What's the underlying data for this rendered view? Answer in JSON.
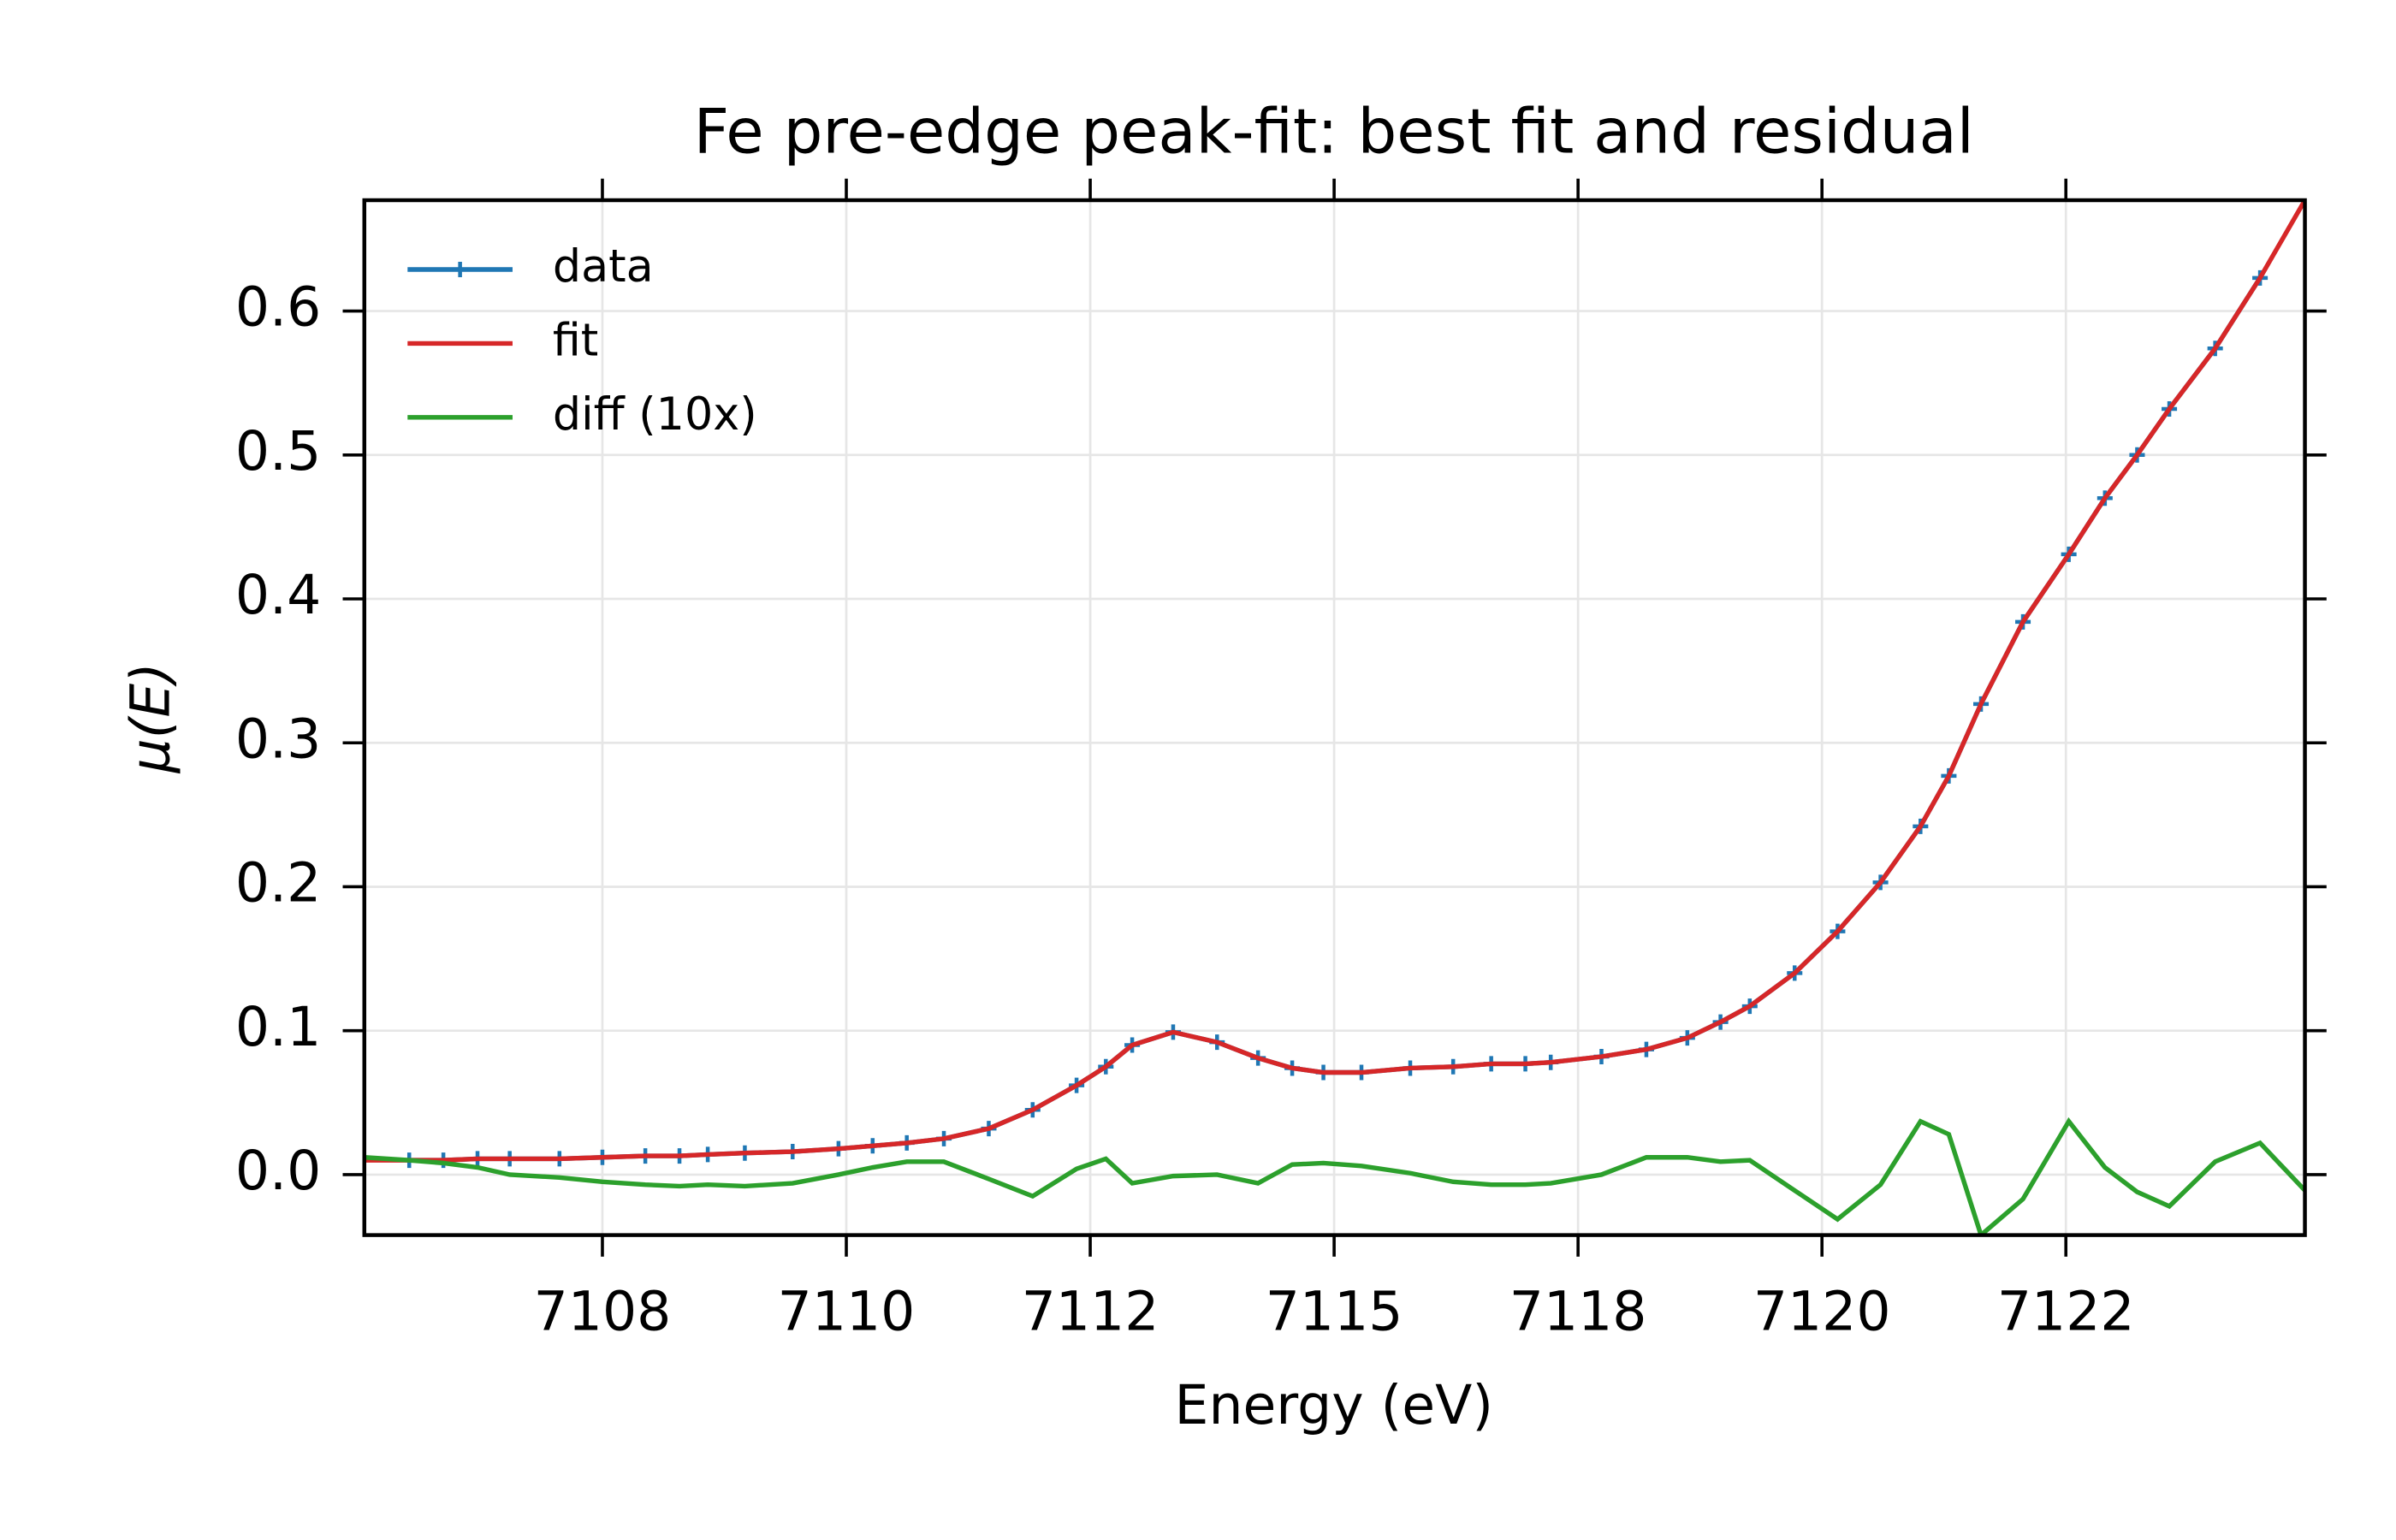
{
  "chart_data": {
    "type": "line",
    "title": "Fe pre-edge peak-fit: best fit and residual",
    "xlabel": "Energy (eV)",
    "ylabel": "μ(E)",
    "xlim": [
      7105.06,
      7124.95
    ],
    "ylim": [
      -0.042,
      0.677
    ],
    "xticks": [
      {
        "value": 7107.5,
        "label": "7108"
      },
      {
        "value": 7110,
        "label": "7110"
      },
      {
        "value": 7112.5,
        "label": "7112"
      },
      {
        "value": 7115,
        "label": "7115"
      },
      {
        "value": 7117.5,
        "label": "7118"
      },
      {
        "value": 7120,
        "label": "7120"
      },
      {
        "value": 7122.5,
        "label": "7122"
      }
    ],
    "yticks": [
      {
        "value": 0,
        "label": "0.0"
      },
      0.1,
      0.2,
      0.3,
      0.4,
      0.5,
      0.6
    ],
    "grid": true,
    "legend": "upper left",
    "series": [
      {
        "name": "data",
        "color": "#1f77b4",
        "marker": "+",
        "x": [
          7105.52,
          7105.87,
          7106.22,
          7106.55,
          7107.06,
          7107.5,
          7107.94,
          7108.29,
          7108.58,
          7108.96,
          7109.45,
          7109.92,
          7110.27,
          7110.62,
          7111.0,
          7111.46,
          7111.91,
          7112.36,
          7112.66,
          7112.93,
          7113.35,
          7113.8,
          7114.22,
          7114.57,
          7114.89,
          7115.28,
          7115.78,
          7116.22,
          7116.61,
          7116.96,
          7117.22,
          7117.74,
          7118.2,
          7118.62,
          7118.96,
          7119.26,
          7119.72,
          7120.16,
          7120.6,
          7121.01,
          7121.3,
          7121.63,
          7122.06,
          7122.53,
          7122.9,
          7123.23,
          7123.56,
          7124.03,
          7124.49
        ],
        "values": [
          0.01,
          0.01,
          0.011,
          0.011,
          0.011,
          0.012,
          0.013,
          0.013,
          0.014,
          0.015,
          0.016,
          0.018,
          0.02,
          0.022,
          0.025,
          0.032,
          0.045,
          0.062,
          0.075,
          0.09,
          0.099,
          0.092,
          0.081,
          0.074,
          0.071,
          0.071,
          0.074,
          0.075,
          0.077,
          0.077,
          0.078,
          0.082,
          0.087,
          0.095,
          0.106,
          0.117,
          0.14,
          0.169,
          0.203,
          0.242,
          0.277,
          0.327,
          0.384,
          0.431,
          0.47,
          0.5,
          0.532,
          0.574,
          0.623
        ]
      },
      {
        "name": "fit",
        "color": "#d62728",
        "x": [
          7105.06,
          7105.52,
          7105.87,
          7106.22,
          7106.55,
          7107.06,
          7107.5,
          7107.94,
          7108.29,
          7108.58,
          7108.96,
          7109.45,
          7109.92,
          7110.27,
          7110.62,
          7111.0,
          7111.46,
          7111.91,
          7112.36,
          7112.66,
          7112.93,
          7113.35,
          7113.8,
          7114.22,
          7114.57,
          7114.89,
          7115.28,
          7115.78,
          7116.22,
          7116.61,
          7116.96,
          7117.22,
          7117.74,
          7118.2,
          7118.62,
          7118.96,
          7119.26,
          7119.72,
          7120.16,
          7120.6,
          7121.01,
          7121.3,
          7121.63,
          7122.06,
          7122.53,
          7122.9,
          7123.23,
          7123.56,
          7124.03,
          7124.49,
          7124.95
        ],
        "values": [
          0.01,
          0.01,
          0.01,
          0.011,
          0.011,
          0.011,
          0.012,
          0.013,
          0.013,
          0.014,
          0.015,
          0.016,
          0.018,
          0.02,
          0.022,
          0.025,
          0.032,
          0.045,
          0.062,
          0.075,
          0.09,
          0.099,
          0.092,
          0.081,
          0.074,
          0.071,
          0.071,
          0.074,
          0.075,
          0.077,
          0.077,
          0.078,
          0.082,
          0.087,
          0.095,
          0.106,
          0.117,
          0.14,
          0.169,
          0.203,
          0.242,
          0.277,
          0.327,
          0.384,
          0.431,
          0.47,
          0.5,
          0.532,
          0.574,
          0.623,
          0.677
        ]
      },
      {
        "name": "diff (10x)",
        "color": "#2ca02c",
        "x": [
          7105.06,
          7105.52,
          7105.87,
          7106.22,
          7106.55,
          7107.06,
          7107.5,
          7107.94,
          7108.29,
          7108.58,
          7108.96,
          7109.45,
          7109.92,
          7110.27,
          7110.62,
          7111.0,
          7111.46,
          7111.91,
          7112.36,
          7112.66,
          7112.93,
          7113.35,
          7113.8,
          7114.22,
          7114.57,
          7114.89,
          7115.28,
          7115.78,
          7116.22,
          7116.61,
          7116.96,
          7117.22,
          7117.74,
          7118.2,
          7118.62,
          7118.96,
          7119.26,
          7119.72,
          7120.16,
          7120.6,
          7121.01,
          7121.3,
          7121.63,
          7122.06,
          7122.53,
          7122.9,
          7123.23,
          7123.56,
          7124.03,
          7124.49,
          7124.95
        ],
        "values": [
          0.012,
          0.01,
          0.008,
          0.005,
          0.0,
          -0.002,
          -0.005,
          -0.007,
          -0.008,
          -0.007,
          -0.008,
          -0.006,
          0.0,
          0.005,
          0.009,
          0.009,
          -0.003,
          -0.015,
          0.004,
          0.011,
          -0.006,
          -0.001,
          0.0,
          -0.006,
          0.007,
          0.008,
          0.006,
          0.001,
          -0.005,
          -0.007,
          -0.007,
          -0.006,
          0.0,
          0.012,
          0.012,
          0.009,
          0.01,
          -0.011,
          -0.031,
          -0.007,
          0.037,
          0.028,
          -0.042,
          -0.017,
          0.037,
          0.005,
          -0.012,
          -0.022,
          0.009,
          0.022,
          -0.011
        ]
      }
    ]
  }
}
